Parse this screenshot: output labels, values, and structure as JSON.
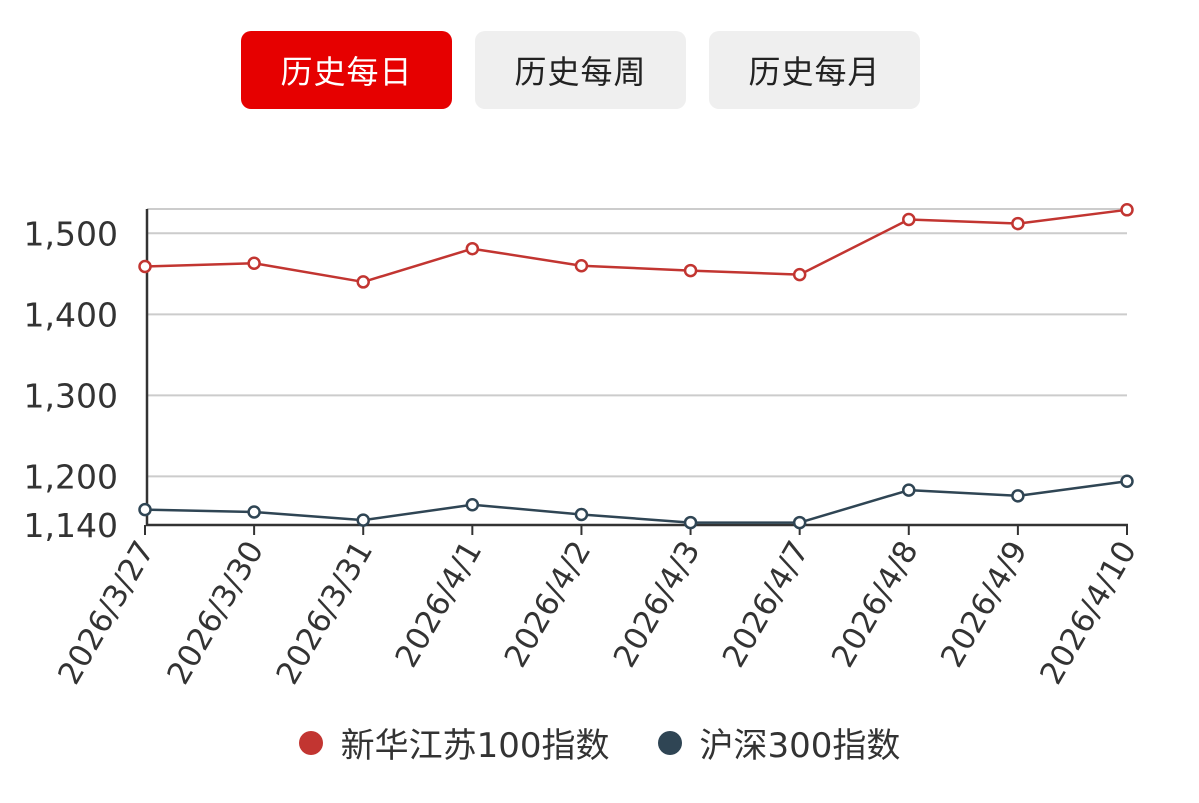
{
  "tabs": [
    {
      "label": "历史每日",
      "active": true
    },
    {
      "label": "历史每周",
      "active": false
    },
    {
      "label": "历史每月",
      "active": false
    }
  ],
  "colors": {
    "active_tab": "#e60000",
    "series_1": "#c23531",
    "series_2": "#2f4554"
  },
  "chart_data": {
    "type": "line",
    "x": [
      "2026/3/27",
      "2026/3/30",
      "2026/3/31",
      "2026/4/1",
      "2026/4/2",
      "2026/4/3",
      "2026/4/7",
      "2026/4/8",
      "2026/4/9",
      "2026/4/10"
    ],
    "series": [
      {
        "name": "新华江苏100指数",
        "color": "#c23531",
        "values": [
          1459,
          1463,
          1440,
          1481,
          1460,
          1454,
          1449,
          1517,
          1512,
          1529
        ]
      },
      {
        "name": "沪深300指数",
        "color": "#2f4554",
        "values": [
          1159,
          1156,
          1146,
          1165,
          1153,
          1143,
          1143,
          1183,
          1176,
          1194
        ]
      }
    ],
    "yticks": [
      "1,140",
      "1,200",
      "1,300",
      "1,400",
      "1,500"
    ],
    "ytick_values": [
      1140,
      1200,
      1300,
      1400,
      1500
    ],
    "ylim": [
      1140,
      1530
    ],
    "grid": true,
    "legend_position": "bottom"
  }
}
